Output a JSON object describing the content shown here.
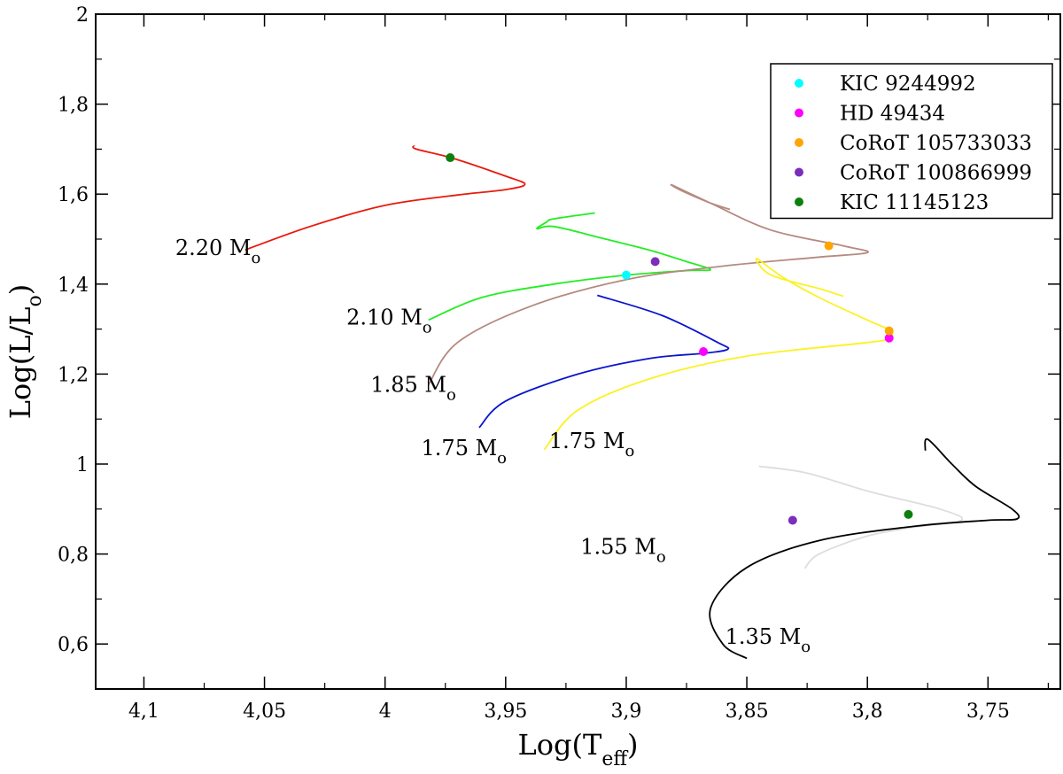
{
  "chart_data": {
    "type": "line",
    "title": "",
    "xlabel": "Log(T",
    "xlabel_sub": "eff",
    "xlabel_close": ")",
    "ylabel": "Log(L/L",
    "ylabel_sub": "o",
    "ylabel_close": ")",
    "xlim": [
      4.12,
      3.72
    ],
    "ylim": [
      0.5,
      2.0
    ],
    "x_ticks": [
      4.1,
      4.05,
      4.0,
      3.95,
      3.9,
      3.85,
      3.8,
      3.75
    ],
    "x_tick_labels": [
      "4,1",
      "4,05",
      "4",
      "3,95",
      "3,9",
      "3,85",
      "3,8",
      "3,75"
    ],
    "y_ticks": [
      0.6,
      0.8,
      1.0,
      1.2,
      1.4,
      1.6,
      1.8,
      2.0
    ],
    "y_tick_labels": [
      "0,6",
      "0,8",
      "1",
      "1,2",
      "1,4",
      "1,6",
      "1,8",
      "2"
    ],
    "grid": false,
    "legend_position": "top-right",
    "series": [
      {
        "name": "2.20 Mo track",
        "color": "#e8190c",
        "points": [
          [
            4.058,
            1.476
          ],
          [
            4.03,
            1.53
          ],
          [
            4.0,
            1.575
          ],
          [
            3.97,
            1.598
          ],
          [
            3.95,
            1.61
          ],
          [
            3.942,
            1.622
          ],
          [
            3.95,
            1.64
          ],
          [
            3.972,
            1.68
          ],
          [
            3.987,
            1.7
          ],
          [
            3.988,
            1.708
          ]
        ]
      },
      {
        "name": "2.10 Mo track",
        "color": "#22ee22",
        "points": [
          [
            3.982,
            1.32
          ],
          [
            3.96,
            1.37
          ],
          [
            3.93,
            1.4
          ],
          [
            3.9,
            1.42
          ],
          [
            3.875,
            1.43
          ],
          [
            3.865,
            1.432
          ],
          [
            3.875,
            1.45
          ],
          [
            3.89,
            1.475
          ],
          [
            3.91,
            1.502
          ],
          [
            3.93,
            1.528
          ],
          [
            3.937,
            1.523
          ],
          [
            3.933,
            1.538
          ],
          [
            3.93,
            1.545
          ],
          [
            3.913,
            1.558
          ]
        ]
      },
      {
        "name": "1.85 Mo track",
        "color": "#b58a80",
        "points": [
          [
            3.982,
            1.176
          ],
          [
            3.97,
            1.27
          ],
          [
            3.94,
            1.35
          ],
          [
            3.9,
            1.41
          ],
          [
            3.86,
            1.44
          ],
          [
            3.82,
            1.46
          ],
          [
            3.8,
            1.47
          ],
          [
            3.81,
            1.485
          ],
          [
            3.84,
            1.52
          ],
          [
            3.865,
            1.58
          ],
          [
            3.881,
            1.62
          ],
          [
            3.876,
            1.605
          ],
          [
            3.865,
            1.58
          ],
          [
            3.857,
            1.566
          ]
        ]
      },
      {
        "name": "1.75 Mo track (blue)",
        "color": "#0a14cc",
        "points": [
          [
            3.961,
            1.081
          ],
          [
            3.95,
            1.14
          ],
          [
            3.92,
            1.2
          ],
          [
            3.89,
            1.235
          ],
          [
            3.868,
            1.246
          ],
          [
            3.858,
            1.255
          ],
          [
            3.862,
            1.27
          ],
          [
            3.885,
            1.33
          ],
          [
            3.912,
            1.375
          ]
        ]
      },
      {
        "name": "1.75 Mo track (yellow)",
        "color": "#fbf223",
        "points": [
          [
            3.934,
            1.032
          ],
          [
            3.92,
            1.12
          ],
          [
            3.89,
            1.19
          ],
          [
            3.85,
            1.24
          ],
          [
            3.8,
            1.27
          ],
          [
            3.792,
            1.278
          ],
          [
            3.79,
            1.295
          ],
          [
            3.8,
            1.32
          ],
          [
            3.82,
            1.37
          ],
          [
            3.835,
            1.415
          ],
          [
            3.846,
            1.457
          ],
          [
            3.84,
            1.42
          ],
          [
            3.82,
            1.39
          ],
          [
            3.81,
            1.373
          ]
        ]
      },
      {
        "name": "1.55 Mo track",
        "color": "#dddddd",
        "points": [
          [
            3.826,
            0.768
          ],
          [
            3.82,
            0.8
          ],
          [
            3.8,
            0.84
          ],
          [
            3.78,
            0.86
          ],
          [
            3.761,
            0.875
          ],
          [
            3.77,
            0.9
          ],
          [
            3.8,
            0.94
          ],
          [
            3.825,
            0.98
          ],
          [
            3.845,
            0.995
          ]
        ]
      },
      {
        "name": "1.35 Mo track",
        "color": "#000000",
        "points": [
          [
            3.85,
            0.568
          ],
          [
            3.86,
            0.6
          ],
          [
            3.865,
            0.68
          ],
          [
            3.85,
            0.77
          ],
          [
            3.82,
            0.83
          ],
          [
            3.78,
            0.862
          ],
          [
            3.75,
            0.875
          ],
          [
            3.738,
            0.878
          ],
          [
            3.74,
            0.9
          ],
          [
            3.755,
            0.95
          ],
          [
            3.765,
            1.0
          ],
          [
            3.775,
            1.055
          ],
          [
            3.776,
            1.03
          ]
        ]
      }
    ],
    "points": [
      {
        "name": "KIC 9244992",
        "color": "#00ffff",
        "x": 3.9,
        "y": 1.42
      },
      {
        "name": "HD 49434",
        "color": "#ff00ff",
        "x": 3.868,
        "y": 1.25
      },
      {
        "name": "HD 49434",
        "color": "#ff00ff",
        "x": 3.791,
        "y": 1.28
      },
      {
        "name": "CoRoT 105733033",
        "color": "#ffa500",
        "x": 3.816,
        "y": 1.485
      },
      {
        "name": "CoRoT 105733033",
        "color": "#ffa500",
        "x": 3.791,
        "y": 1.296
      },
      {
        "name": "CoRoT 100866999",
        "color": "#7b2dbb",
        "x": 3.888,
        "y": 1.45
      },
      {
        "name": "CoRoT 100866999",
        "color": "#7b2dbb",
        "x": 3.831,
        "y": 0.875
      },
      {
        "name": "KIC 11145123",
        "color": "#0c800c",
        "x": 3.973,
        "y": 1.681
      },
      {
        "name": "KIC 11145123",
        "color": "#0c800c",
        "x": 3.783,
        "y": 0.888
      }
    ],
    "legend": [
      {
        "label": "KIC 9244992",
        "color": "#00ffff"
      },
      {
        "label": "HD 49434",
        "color": "#ff00ff"
      },
      {
        "label": "CoRoT 105733033",
        "color": "#ffa500"
      },
      {
        "label": "CoRoT 100866999",
        "color": "#7b2dbb"
      },
      {
        "label": "KIC 11145123",
        "color": "#0c800c"
      }
    ],
    "annotations": [
      {
        "mass": "2.20 M",
        "sub": "o",
        "x": 4.087,
        "y": 1.465
      },
      {
        "mass": "2.10 M",
        "sub": "o",
        "x": 4.016,
        "y": 1.31
      },
      {
        "mass": "1.85 M",
        "sub": "o",
        "x": 4.006,
        "y": 1.16
      },
      {
        "mass": "1.75 M",
        "sub": "o",
        "x": 3.985,
        "y": 1.02
      },
      {
        "mass": "1.75 M",
        "sub": "o",
        "x": 3.932,
        "y": 1.035
      },
      {
        "mass": "1.55 M",
        "sub": "o",
        "x": 3.919,
        "y": 0.8
      },
      {
        "mass": "1.35 M",
        "sub": "o",
        "x": 3.859,
        "y": 0.6
      }
    ]
  }
}
